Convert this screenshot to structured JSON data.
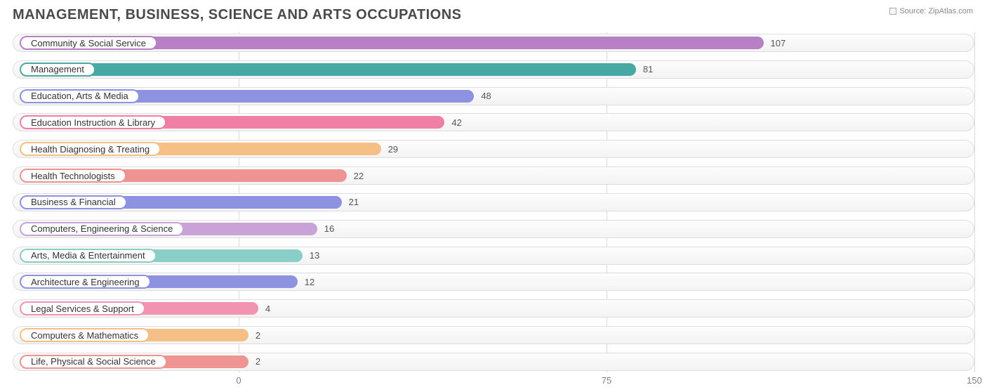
{
  "title": "MANAGEMENT, BUSINESS, SCIENCE AND ARTS OCCUPATIONS",
  "source_label": "Source: ZipAtlas.com",
  "chart": {
    "type": "bar",
    "orientation": "horizontal",
    "origin_offset_pct": 23.5,
    "xlim": [
      0,
      150
    ],
    "xtick_step": 75,
    "xticks": [
      0,
      75,
      150
    ],
    "background_color": "#ffffff",
    "track_border_color": "#dddddd",
    "grid_color": "#d9d9d9",
    "label_fontsize": 13,
    "title_fontsize": 20,
    "title_color": "#4a4a4a",
    "value_color": "#555555",
    "items": [
      {
        "label": "Community & Social Service",
        "value": 107,
        "color": "#b77fc4"
      },
      {
        "label": "Management",
        "value": 81,
        "color": "#48a8a4"
      },
      {
        "label": "Education, Arts & Media",
        "value": 48,
        "color": "#8d93e0"
      },
      {
        "label": "Education Instruction & Library",
        "value": 42,
        "color": "#ef7fa4"
      },
      {
        "label": "Health Diagnosing & Treating",
        "value": 29,
        "color": "#f6bf86"
      },
      {
        "label": "Health Technologists",
        "value": 22,
        "color": "#ee9492"
      },
      {
        "label": "Business & Financial",
        "value": 21,
        "color": "#8d93e0"
      },
      {
        "label": "Computers, Engineering & Science",
        "value": 16,
        "color": "#c9a2d8"
      },
      {
        "label": "Arts, Media & Entertainment",
        "value": 13,
        "color": "#89cfc8"
      },
      {
        "label": "Architecture & Engineering",
        "value": 12,
        "color": "#8d93e0"
      },
      {
        "label": "Legal Services & Support",
        "value": 4,
        "color": "#f293b2"
      },
      {
        "label": "Computers & Mathematics",
        "value": 2,
        "color": "#f6bf86"
      },
      {
        "label": "Life, Physical & Social Science",
        "value": 2,
        "color": "#ee9492"
      }
    ]
  }
}
